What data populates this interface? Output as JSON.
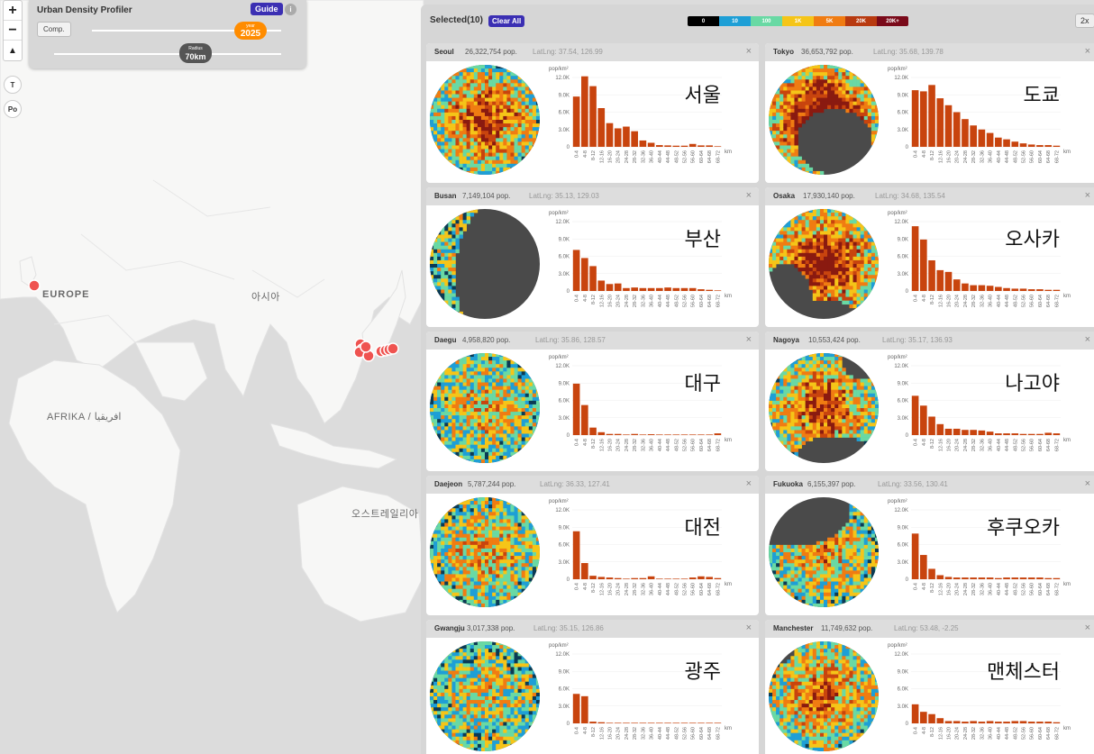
{
  "map": {
    "labels": {
      "europe": "EUROPE",
      "asia": "아시아",
      "africa": "AFRIKA / افريقيا",
      "oceania": "오스트레일리아"
    },
    "zoom_in": "+",
    "zoom_out": "−",
    "north": "▲",
    "btn_t": "T",
    "btn_po": "Po",
    "marker_color": "#ef5350"
  },
  "controls": {
    "title": "Urban Density Profiler",
    "guide": "Guide",
    "info": "i",
    "comp": "Comp.",
    "year_key": "year",
    "year_value": "2025",
    "radius_key": "Radius",
    "radius_value": "70km"
  },
  "panel": {
    "selected": "Selected(10)",
    "clear_all": "Clear All",
    "zoom": "2x",
    "legend": [
      {
        "label": "0",
        "color": "#000000"
      },
      {
        "label": "10",
        "color": "#1e9fd6"
      },
      {
        "label": "100",
        "color": "#69d9a4"
      },
      {
        "label": "1K",
        "color": "#f5c518"
      },
      {
        "label": "5K",
        "color": "#f07c12"
      },
      {
        "label": "20K",
        "color": "#b83a10"
      },
      {
        "label": "20K+",
        "color": "#7a0a1a"
      }
    ]
  },
  "chart_common": {
    "ylabel": "pop/km²",
    "xlabel": "km",
    "yticks": [
      "12.0K",
      "9.0K",
      "6.0K",
      "3.0K",
      "0"
    ],
    "ytick_values": [
      12000,
      9000,
      6000,
      3000,
      0
    ],
    "categories": [
      "0-4",
      "4-8",
      "8-12",
      "12-16",
      "16-20",
      "20-24",
      "24-28",
      "28-32",
      "32-36",
      "36-40",
      "40-44",
      "44-48",
      "48-52",
      "52-56",
      "56-60",
      "60-64",
      "64-68",
      "68-72"
    ],
    "bar_color": "#c8440e"
  },
  "cities": [
    {
      "name": "Seoul",
      "pop": "26,322,754 pop.",
      "latlng": "LatLng: 37.54, 126.99",
      "korean": "서울",
      "close": "×",
      "style": "seoul",
      "values": [
        8700,
        12200,
        10500,
        6700,
        4100,
        3200,
        3500,
        2700,
        1100,
        700,
        300,
        250,
        200,
        200,
        500,
        250,
        250,
        100
      ]
    },
    {
      "name": "Tokyo",
      "pop": "36,653,792 pop.",
      "latlng": "LatLng: 35.68, 139.78",
      "korean": "도쿄",
      "close": "×",
      "style": "tokyo",
      "values": [
        9800,
        9600,
        10700,
        8400,
        7200,
        6000,
        4800,
        3700,
        3000,
        2400,
        1600,
        1300,
        900,
        600,
        400,
        300,
        300,
        200
      ]
    },
    {
      "name": "Busan",
      "pop": "7,149,104 pop.",
      "latlng": "LatLng: 35.13, 129.03",
      "korean": "부산",
      "close": "×",
      "style": "busan",
      "values": [
        7100,
        5700,
        4300,
        1800,
        1200,
        1300,
        500,
        600,
        500,
        500,
        500,
        600,
        500,
        500,
        500,
        300,
        200,
        100
      ]
    },
    {
      "name": "Osaka",
      "pop": "17,930,140 pop.",
      "latlng": "LatLng: 34.68, 135.54",
      "korean": "오사카",
      "close": "×",
      "style": "osaka",
      "values": [
        11200,
        8900,
        5300,
        3600,
        3300,
        2000,
        1300,
        1000,
        1000,
        900,
        700,
        500,
        400,
        400,
        300,
        300,
        200,
        200
      ]
    },
    {
      "name": "Daegu",
      "pop": "4,958,820 pop.",
      "latlng": "LatLng: 35.86, 128.57",
      "korean": "대구",
      "close": "×",
      "style": "daegu",
      "values": [
        8900,
        5200,
        1300,
        500,
        200,
        200,
        100,
        200,
        100,
        150,
        100,
        100,
        100,
        100,
        100,
        100,
        100,
        300
      ]
    },
    {
      "name": "Nagoya",
      "pop": "10,553,424 pop.",
      "latlng": "LatLng: 35.17, 136.93",
      "korean": "나고야",
      "close": "×",
      "style": "nagoya",
      "values": [
        6800,
        5100,
        3200,
        1900,
        1100,
        1100,
        900,
        900,
        800,
        600,
        300,
        300,
        300,
        200,
        200,
        200,
        400,
        300
      ]
    },
    {
      "name": "Daejeon",
      "pop": "5,787,244 pop.",
      "latlng": "LatLng: 36.33, 127.41",
      "korean": "대전",
      "close": "×",
      "style": "daejeon",
      "values": [
        8300,
        2800,
        600,
        400,
        300,
        200,
        100,
        200,
        200,
        500,
        100,
        100,
        100,
        100,
        300,
        500,
        400,
        200
      ]
    },
    {
      "name": "Fukuoka",
      "pop": "6,155,397 pop.",
      "latlng": "LatLng: 33.56, 130.41",
      "korean": "후쿠오카",
      "close": "×",
      "style": "fukuoka",
      "values": [
        7900,
        4200,
        1800,
        700,
        400,
        300,
        300,
        300,
        300,
        300,
        200,
        300,
        300,
        300,
        300,
        300,
        200,
        200
      ]
    },
    {
      "name": "Gwangju",
      "pop": "3,017,338 pop.",
      "latlng": "LatLng: 35.15, 126.86",
      "korean": "광주",
      "close": "×",
      "style": "gwangju",
      "values": [
        5100,
        4700,
        300,
        200,
        100,
        100,
        100,
        100,
        100,
        100,
        100,
        100,
        100,
        100,
        100,
        100,
        100,
        100
      ]
    },
    {
      "name": "Manchester",
      "pop": "11,749,632 pop.",
      "latlng": "LatLng: 53.48, -2.25",
      "korean": "맨체스터",
      "close": "×",
      "style": "manchester",
      "values": [
        3300,
        2000,
        1600,
        900,
        400,
        400,
        300,
        400,
        300,
        400,
        300,
        300,
        400,
        400,
        300,
        300,
        300,
        200
      ]
    }
  ]
}
